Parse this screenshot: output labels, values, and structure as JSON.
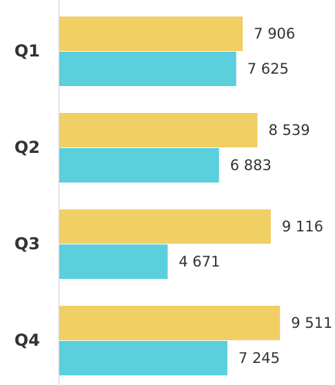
{
  "chart_data": {
    "type": "bar",
    "orientation": "horizontal",
    "categories": [
      "Q1",
      "Q2",
      "Q3",
      "Q4"
    ],
    "series": [
      {
        "color": "#f0cf65",
        "values": [
          7906,
          8539,
          9116,
          9511
        ],
        "value_labels": [
          "7 906",
          "8 539",
          "9 116",
          "9 511"
        ]
      },
      {
        "color": "#5bcfdc",
        "values": [
          7625,
          6883,
          4671,
          7245
        ],
        "value_labels": [
          "7 625",
          "6 883",
          "4 671",
          "7 245"
        ]
      }
    ],
    "xlim": [
      0,
      12000
    ]
  }
}
